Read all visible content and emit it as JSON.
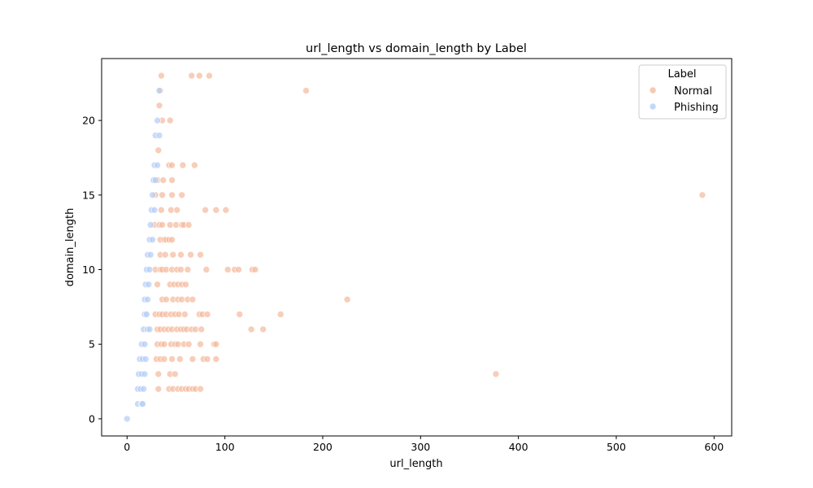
{
  "chart_data": {
    "type": "scatter",
    "title": "url_length vs domain_length by Label",
    "xlabel": "url_length",
    "ylabel": "domain_length",
    "xlim": [
      -26,
      618
    ],
    "ylim": [
      -1.15,
      24.15
    ],
    "xticks": [
      0,
      100,
      200,
      300,
      400,
      500,
      600
    ],
    "yticks": [
      0,
      5,
      10,
      15,
      20
    ],
    "grid": false,
    "legend": {
      "title": "Label",
      "placement": "top-right"
    },
    "series": [
      {
        "name": "Normal",
        "color": "#f4bb9e",
        "points": [
          [
            35,
            23
          ],
          [
            66,
            23
          ],
          [
            74,
            23
          ],
          [
            84,
            23
          ],
          [
            183,
            22
          ],
          [
            34,
            22
          ],
          [
            33,
            21
          ],
          [
            44,
            20
          ],
          [
            36,
            20
          ],
          [
            32,
            18
          ],
          [
            43,
            17
          ],
          [
            46,
            17
          ],
          [
            57,
            17
          ],
          [
            69,
            17
          ],
          [
            31,
            16
          ],
          [
            37,
            16
          ],
          [
            46,
            16
          ],
          [
            588,
            15
          ],
          [
            29,
            15
          ],
          [
            36,
            15
          ],
          [
            46,
            15
          ],
          [
            56,
            15
          ],
          [
            35,
            14
          ],
          [
            45,
            14
          ],
          [
            51,
            14
          ],
          [
            80,
            14
          ],
          [
            91,
            14
          ],
          [
            101,
            14
          ],
          [
            28,
            13
          ],
          [
            33,
            13
          ],
          [
            36,
            13
          ],
          [
            44,
            13
          ],
          [
            50,
            13
          ],
          [
            56,
            13
          ],
          [
            58,
            13
          ],
          [
            63,
            13
          ],
          [
            34,
            12
          ],
          [
            38,
            12
          ],
          [
            40,
            12
          ],
          [
            43,
            12
          ],
          [
            46,
            12
          ],
          [
            34,
            11
          ],
          [
            39,
            11
          ],
          [
            47,
            11
          ],
          [
            55,
            11
          ],
          [
            65,
            11
          ],
          [
            75,
            11
          ],
          [
            29,
            10
          ],
          [
            34,
            10
          ],
          [
            36,
            10
          ],
          [
            40,
            10
          ],
          [
            46,
            10
          ],
          [
            51,
            10
          ],
          [
            55,
            10
          ],
          [
            62,
            10
          ],
          [
            81,
            10
          ],
          [
            103,
            10
          ],
          [
            110,
            10
          ],
          [
            114,
            10
          ],
          [
            128,
            10
          ],
          [
            131,
            10
          ],
          [
            31,
            9
          ],
          [
            44,
            9
          ],
          [
            48,
            9
          ],
          [
            52,
            9
          ],
          [
            56,
            9
          ],
          [
            60,
            9
          ],
          [
            36,
            8
          ],
          [
            40,
            8
          ],
          [
            47,
            8
          ],
          [
            52,
            8
          ],
          [
            56,
            8
          ],
          [
            62,
            8
          ],
          [
            67,
            8
          ],
          [
            225,
            8
          ],
          [
            29,
            7
          ],
          [
            33,
            7
          ],
          [
            36,
            7
          ],
          [
            40,
            7
          ],
          [
            45,
            7
          ],
          [
            49,
            7
          ],
          [
            53,
            7
          ],
          [
            59,
            7
          ],
          [
            74,
            7
          ],
          [
            77,
            7
          ],
          [
            82,
            7
          ],
          [
            115,
            7
          ],
          [
            157,
            7
          ],
          [
            31,
            6
          ],
          [
            34,
            6
          ],
          [
            38,
            6
          ],
          [
            42,
            6
          ],
          [
            46,
            6
          ],
          [
            51,
            6
          ],
          [
            55,
            6
          ],
          [
            58,
            6
          ],
          [
            61,
            6
          ],
          [
            66,
            6
          ],
          [
            70,
            6
          ],
          [
            76,
            6
          ],
          [
            127,
            6
          ],
          [
            139,
            6
          ],
          [
            31,
            5
          ],
          [
            35,
            5
          ],
          [
            38,
            5
          ],
          [
            45,
            5
          ],
          [
            49,
            5
          ],
          [
            52,
            5
          ],
          [
            58,
            5
          ],
          [
            63,
            5
          ],
          [
            75,
            5
          ],
          [
            89,
            5
          ],
          [
            91,
            5
          ],
          [
            30,
            4
          ],
          [
            34,
            4
          ],
          [
            38,
            4
          ],
          [
            46,
            4
          ],
          [
            54,
            4
          ],
          [
            67,
            4
          ],
          [
            78,
            4
          ],
          [
            82,
            4
          ],
          [
            91,
            4
          ],
          [
            32,
            3
          ],
          [
            44,
            3
          ],
          [
            49,
            3
          ],
          [
            377,
            3
          ],
          [
            32,
            2
          ],
          [
            43,
            2
          ],
          [
            47,
            2
          ],
          [
            52,
            2
          ],
          [
            56,
            2
          ],
          [
            60,
            2
          ],
          [
            63,
            2
          ],
          [
            67,
            2
          ],
          [
            70,
            2
          ],
          [
            75,
            2
          ]
        ]
      },
      {
        "name": "Phishing",
        "color": "#b5cdf6",
        "points": [
          [
            33,
            22
          ],
          [
            31,
            20
          ],
          [
            29,
            19
          ],
          [
            33,
            19
          ],
          [
            28,
            17
          ],
          [
            31,
            17
          ],
          [
            27,
            16
          ],
          [
            29,
            16
          ],
          [
            26,
            15
          ],
          [
            25,
            14
          ],
          [
            28,
            14
          ],
          [
            24,
            13
          ],
          [
            23,
            12
          ],
          [
            26,
            12
          ],
          [
            21,
            11
          ],
          [
            24,
            11
          ],
          [
            20,
            10
          ],
          [
            23,
            10
          ],
          [
            19,
            9
          ],
          [
            22,
            9
          ],
          [
            18,
            8
          ],
          [
            21,
            8
          ],
          [
            18,
            7
          ],
          [
            20,
            7
          ],
          [
            17,
            6
          ],
          [
            21,
            6
          ],
          [
            23,
            6
          ],
          [
            15,
            5
          ],
          [
            18,
            5
          ],
          [
            13,
            4
          ],
          [
            16,
            4
          ],
          [
            19,
            4
          ],
          [
            12,
            3
          ],
          [
            15,
            3
          ],
          [
            18,
            3
          ],
          [
            11,
            2
          ],
          [
            14,
            2
          ],
          [
            17,
            2
          ],
          [
            11,
            1
          ],
          [
            15,
            1
          ],
          [
            16,
            1
          ],
          [
            0,
            0
          ]
        ]
      }
    ]
  }
}
